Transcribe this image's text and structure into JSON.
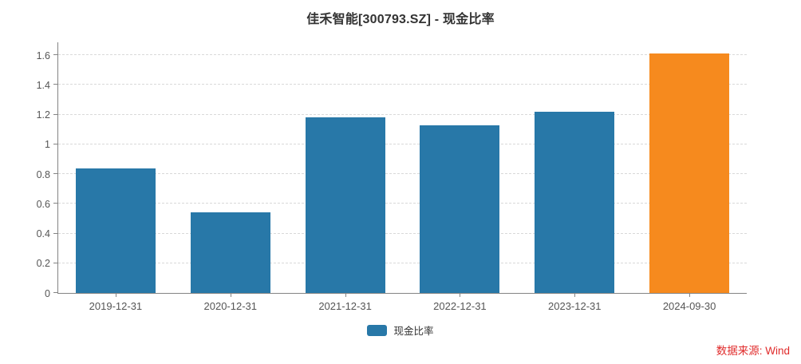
{
  "title": "佳禾智能[300793.SZ] - 现金比率",
  "legend": {
    "label": "现金比率"
  },
  "source_note": "数据来源: Wind",
  "colors": {
    "bar_default": "#2878A8",
    "bar_highlight": "#F68A1E",
    "title_text": "#333333",
    "tick_label": "#555555",
    "axis_line": "#848484",
    "grid_line": "#D9D9D9",
    "source_text": "#E02B2B"
  },
  "chart_data": {
    "type": "bar",
    "title": "佳禾智能[300793.SZ] - 现金比率",
    "categories": [
      "2019-12-31",
      "2020-12-31",
      "2021-12-31",
      "2022-12-31",
      "2023-12-31",
      "2024-09-30"
    ],
    "series": [
      {
        "name": "现金比率",
        "values": [
          0.84,
          0.54,
          1.18,
          1.13,
          1.22,
          1.61
        ],
        "colors": [
          "#2878A8",
          "#2878A8",
          "#2878A8",
          "#2878A8",
          "#2878A8",
          "#F68A1E"
        ]
      }
    ],
    "xlabel": "",
    "ylabel": "",
    "ylim": [
      0,
      1.6
    ],
    "yticks": [
      0,
      0.2,
      0.4,
      0.6,
      0.8,
      1,
      1.2,
      1.4,
      1.6
    ],
    "ytick_labels": [
      "0",
      "0.2",
      "0.4",
      "0.6",
      "0.8",
      "1",
      "1.2",
      "1.4",
      "1.6"
    ],
    "grid": "horizontal-dashed",
    "legend_position": "bottom-center",
    "highlight_last_bar": true
  }
}
